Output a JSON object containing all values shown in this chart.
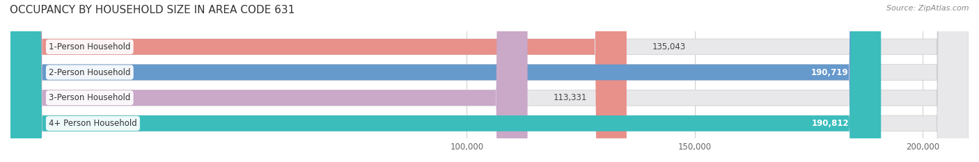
{
  "title": "OCCUPANCY BY HOUSEHOLD SIZE IN AREA CODE 631",
  "source": "Source: ZipAtlas.com",
  "categories": [
    "1-Person Household",
    "2-Person Household",
    "3-Person Household",
    "4+ Person Household"
  ],
  "values": [
    135043,
    190719,
    113331,
    190812
  ],
  "colors": [
    "#E8908A",
    "#6699CC",
    "#C9A8C8",
    "#3BBDBC"
  ],
  "xlim": [
    0,
    210000
  ],
  "xticks": [
    100000,
    150000,
    200000
  ],
  "xtick_labels": [
    "100,000",
    "150,000",
    "200,000"
  ],
  "bar_height": 0.62,
  "bg_color": "#e8e8eb",
  "title_fontsize": 11,
  "label_fontsize": 8.5,
  "tick_fontsize": 8.5,
  "source_fontsize": 8,
  "value_threshold": 160000
}
